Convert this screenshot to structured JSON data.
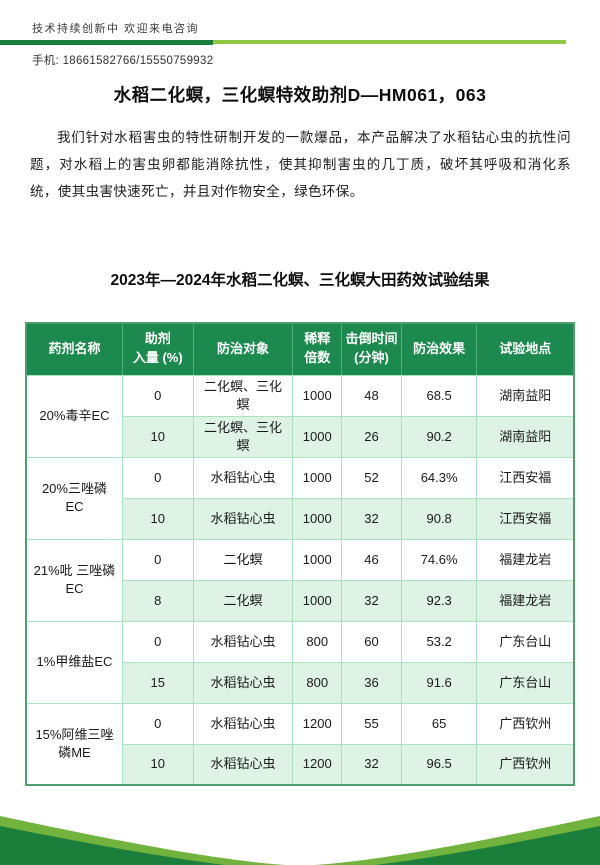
{
  "colors": {
    "bar_dark": "#1b7c3d",
    "bar_light": "#8dc63f",
    "header_green": "#1c8a4e",
    "header_divider": "#4fae7c",
    "row_alt_green": "#def3e6",
    "cell_border": "#a9e2c2",
    "table_outer_border": "#4f9e6f",
    "swoosh_dark": "#1b7f3b",
    "swoosh_light": "#72b33e",
    "text_dark": "#1a1a1a"
  },
  "topbar": {
    "tagline": "技术持续创新中 欢迎来电咨询",
    "phone": "手机: 18661582766/15550759932"
  },
  "page_title": "水稻二化螟，三化螟特效助剂D—HM061，063",
  "intro_paragraph": "我们针对水稻害虫的特性研制开发的一款爆品，本产品解决了水稻钻心虫的抗性问题，对水稻上的害虫卵都能消除抗性，使其抑制害虫的几丁质，破坏其呼吸和消化系统，使其虫害快速死亡，并且对作物安全，绿色环保。",
  "trial_table": {
    "title": "2023年—2024年水稻二化螟、三化螟大田药效试验结果",
    "headers": [
      [
        "药剂名称"
      ],
      [
        "助剂",
        "入量 (%)"
      ],
      [
        "防治对象"
      ],
      [
        "稀释",
        "倍数"
      ],
      [
        "击倒时间",
        "(分钟)"
      ],
      [
        "防治效果"
      ],
      [
        "试验地点"
      ]
    ],
    "column_widths_pct": [
      17.6,
      12.9,
      18.2,
      8.9,
      10.9,
      13.8,
      17.7
    ],
    "groups": [
      {
        "name": "20%毒辛EC",
        "rows": [
          {
            "adjuvant": "0",
            "target": "二化螟、三化螟",
            "dilution": "1000",
            "knockdown": "48",
            "efficacy": "68.5",
            "location": "湖南益阳"
          },
          {
            "adjuvant": "10",
            "target": "二化螟、三化螟",
            "dilution": "1000",
            "knockdown": "26",
            "efficacy": "90.2",
            "location": "湖南益阳"
          }
        ]
      },
      {
        "name": "20%三唑磷EC",
        "rows": [
          {
            "adjuvant": "0",
            "target": "水稻钻心虫",
            "dilution": "1000",
            "knockdown": "52",
            "efficacy": "64.3%",
            "location": "江西安福"
          },
          {
            "adjuvant": "10",
            "target": "水稻钻心虫",
            "dilution": "1000",
            "knockdown": "32",
            "efficacy": "90.8",
            "location": "江西安福"
          }
        ]
      },
      {
        "name": "21%吡 三唑磷EC",
        "rows": [
          {
            "adjuvant": "0",
            "target": "二化螟",
            "dilution": "1000",
            "knockdown": "46",
            "efficacy": "74.6%",
            "location": "福建龙岩"
          },
          {
            "adjuvant": "8",
            "target": "二化螟",
            "dilution": "1000",
            "knockdown": "32",
            "efficacy": "92.3",
            "location": "福建龙岩"
          }
        ]
      },
      {
        "name": "1%甲维盐EC",
        "rows": [
          {
            "adjuvant": "0",
            "target": "水稻钻心虫",
            "dilution": "800",
            "knockdown": "60",
            "efficacy": "53.2",
            "location": "广东台山"
          },
          {
            "adjuvant": "15",
            "target": "水稻钻心虫",
            "dilution": "800",
            "knockdown": "36",
            "efficacy": "91.6",
            "location": "广东台山"
          }
        ]
      },
      {
        "name": "15%阿维三唑磷ME",
        "rows": [
          {
            "adjuvant": "0",
            "target": "水稻钻心虫",
            "dilution": "1200",
            "knockdown": "55",
            "efficacy": "65",
            "location": "广西钦州"
          },
          {
            "adjuvant": "10",
            "target": "水稻钻心虫",
            "dilution": "1200",
            "knockdown": "32",
            "efficacy": "96.5",
            "location": "广西钦州"
          }
        ]
      }
    ]
  }
}
